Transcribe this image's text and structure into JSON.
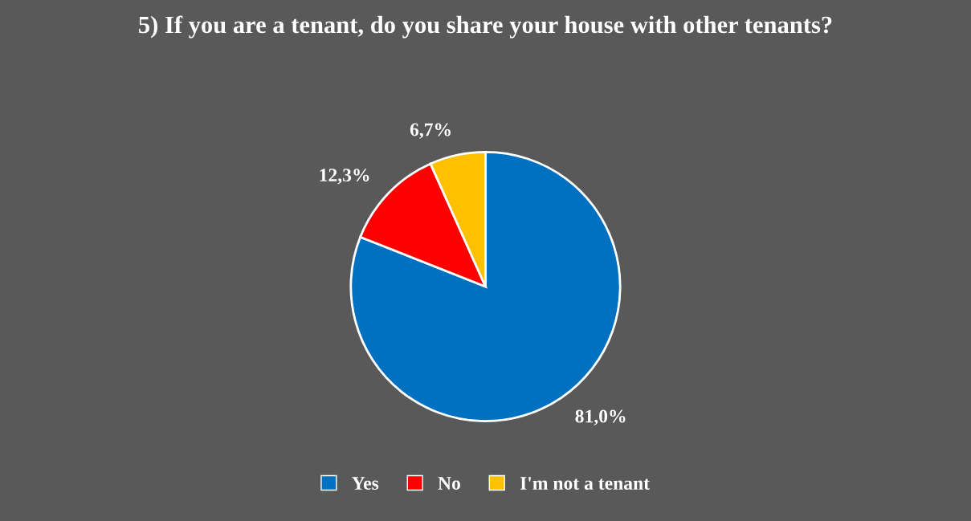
{
  "chart_data": {
    "type": "pie",
    "title": "5) If you are a tenant, do you share your house with other tenants?",
    "categories": [
      "Yes",
      "No",
      "I'm not a tenant"
    ],
    "values": [
      81.0,
      12.3,
      6.7
    ],
    "colors": [
      "#0070c0",
      "#ff0000",
      "#ffc000"
    ],
    "value_labels": [
      "81,0%",
      "12,3%",
      "6,7%"
    ],
    "legend": "bottom"
  }
}
